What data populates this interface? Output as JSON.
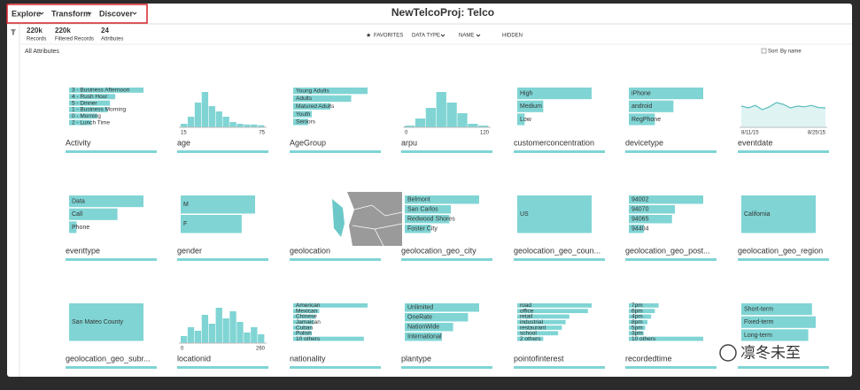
{
  "header": {
    "menus": [
      "Explore",
      "Transform",
      "Discover"
    ],
    "title": "NewTelcoProj: Telco"
  },
  "stats": [
    {
      "value": "220k",
      "label": "Records"
    },
    {
      "value": "220k",
      "label": "Filtered Records"
    },
    {
      "value": "24",
      "label": "Attributes"
    }
  ],
  "toolbar": [
    "FAVORITES",
    "DATA TYPE",
    "NAME",
    "HIDDEN"
  ],
  "section": "All Attributes",
  "sort": {
    "label": "Sort",
    "value": "By name"
  },
  "cards": [
    {
      "name": "Activity",
      "kind": "bars",
      "items": [
        {
          "label": "3 - Business Afternoon",
          "value": 100
        },
        {
          "label": "4 - Rush Hour",
          "value": 62
        },
        {
          "label": "5 - Dinner",
          "value": 55
        },
        {
          "label": "1 - Business Morning",
          "value": 52
        },
        {
          "label": "0 - Morning",
          "value": 38
        },
        {
          "label": "2 - Lunch Time",
          "value": 30
        }
      ]
    },
    {
      "name": "age",
      "kind": "histogram",
      "values": [
        10,
        30,
        70,
        100,
        60,
        45,
        30,
        15,
        10,
        8,
        8,
        6
      ],
      "axis": [
        "15",
        "75"
      ]
    },
    {
      "name": "AgeGroup",
      "kind": "bars",
      "items": [
        {
          "label": "Young Adults",
          "value": 100
        },
        {
          "label": "Adults",
          "value": 78
        },
        {
          "label": "Matured Adults",
          "value": 50
        },
        {
          "label": "Youth",
          "value": 25
        },
        {
          "label": "Seniors",
          "value": 20
        }
      ]
    },
    {
      "name": "arpu",
      "kind": "histogram",
      "values": [
        5,
        25,
        55,
        100,
        70,
        40,
        10,
        5
      ],
      "axis": [
        "0",
        "120"
      ]
    },
    {
      "name": "customerconcentration",
      "kind": "bars",
      "items": [
        {
          "label": "High",
          "value": 100
        },
        {
          "label": "Medium",
          "value": 35
        },
        {
          "label": "Low",
          "value": 10
        }
      ]
    },
    {
      "name": "devicetype",
      "kind": "bars",
      "items": [
        {
          "label": "iPhone",
          "value": 100
        },
        {
          "label": "android",
          "value": 60
        },
        {
          "label": "RegPhone",
          "value": 35
        }
      ]
    },
    {
      "name": "eventdate",
      "kind": "line",
      "values": [
        60,
        55,
        62,
        50,
        58,
        70,
        65,
        55,
        60,
        58,
        62,
        56,
        55
      ],
      "axis": [
        "8/11/15",
        "8/25/15"
      ]
    },
    {
      "name": "eventtype",
      "kind": "bars",
      "items": [
        {
          "label": "Data",
          "value": 100
        },
        {
          "label": "Call",
          "value": 65
        },
        {
          "label": "Phone",
          "value": 10
        }
      ]
    },
    {
      "name": "gender",
      "kind": "bars",
      "items": [
        {
          "label": "M",
          "value": 100
        },
        {
          "label": "F",
          "value": 82
        }
      ]
    },
    {
      "name": "geolocation",
      "kind": "map"
    },
    {
      "name": "geolocation_geo_city",
      "kind": "bars",
      "items": [
        {
          "label": "Belmont",
          "value": 100
        },
        {
          "label": "San Carlos",
          "value": 62
        },
        {
          "label": "Redwood Shores",
          "value": 60
        },
        {
          "label": "Foster City",
          "value": 35
        }
      ]
    },
    {
      "name": "geolocation_geo_coun...",
      "kind": "bars",
      "items": [
        {
          "label": "US",
          "value": 100
        }
      ]
    },
    {
      "name": "geolocation_geo_post...",
      "kind": "bars",
      "items": [
        {
          "label": "94002",
          "value": 100
        },
        {
          "label": "94070",
          "value": 62
        },
        {
          "label": "94065",
          "value": 58
        },
        {
          "label": "94404",
          "value": 20
        }
      ]
    },
    {
      "name": "geolocation_geo_region",
      "kind": "bars",
      "items": [
        {
          "label": "California",
          "value": 100
        }
      ]
    },
    {
      "name": "geolocation_geo_subr...",
      "kind": "bars",
      "items": [
        {
          "label": "San Mateo County",
          "value": 100
        }
      ]
    },
    {
      "name": "locationid",
      "kind": "histogram",
      "values": [
        20,
        45,
        35,
        80,
        55,
        100,
        70,
        90,
        60,
        30,
        45,
        25
      ],
      "axis": [
        "0",
        "260"
      ]
    },
    {
      "name": "nationality",
      "kind": "bars",
      "items": [
        {
          "label": "American",
          "value": 100
        },
        {
          "label": "Mexican",
          "value": 35
        },
        {
          "label": "Chinese",
          "value": 30
        },
        {
          "label": "Jamaican",
          "value": 28
        },
        {
          "label": "Cuban",
          "value": 25
        },
        {
          "label": "Polish",
          "value": 25
        },
        {
          "label": "10 others",
          "value": 95
        }
      ]
    },
    {
      "name": "plantype",
      "kind": "bars",
      "items": [
        {
          "label": "Unlimited",
          "value": 100
        },
        {
          "label": "OneRate",
          "value": 85
        },
        {
          "label": "NationWide",
          "value": 65
        },
        {
          "label": "International",
          "value": 50
        }
      ]
    },
    {
      "name": "pointofinterest",
      "kind": "bars",
      "items": [
        {
          "label": "road",
          "value": 100
        },
        {
          "label": "office",
          "value": 95
        },
        {
          "label": "retail",
          "value": 70
        },
        {
          "label": "industrial",
          "value": 65
        },
        {
          "label": "restaurant",
          "value": 60
        },
        {
          "label": "school",
          "value": 55
        },
        {
          "label": "2 others",
          "value": 35
        }
      ]
    },
    {
      "name": "recordedtime",
      "kind": "bars",
      "items": [
        {
          "label": "7pm",
          "value": 40
        },
        {
          "label": "6pm",
          "value": 35
        },
        {
          "label": "4pm",
          "value": 30
        },
        {
          "label": "8pm",
          "value": 25
        },
        {
          "label": "5pm",
          "value": 22
        },
        {
          "label": "3pm",
          "value": 20
        },
        {
          "label": "10 others",
          "value": 100
        }
      ]
    },
    {
      "kind": "bars",
      "items": [
        {
          "label": "Short-term",
          "value": 95
        },
        {
          "label": "Fixed-term",
          "value": 100
        },
        {
          "label": "Long-term",
          "value": 90
        }
      ]
    }
  ],
  "watermark": "凛冬未至"
}
